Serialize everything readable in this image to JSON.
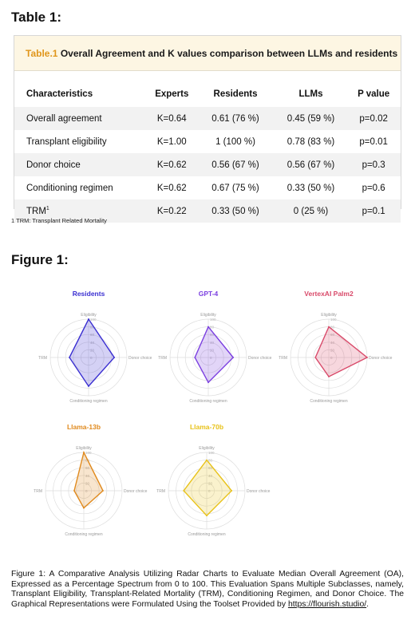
{
  "table_heading": "Table 1:",
  "table": {
    "caption_tag": "Table.1",
    "caption_text": "Overall Agreement and K values comparison between LLMs and residents",
    "headers": [
      "Characteristics",
      "Experts",
      "Residents",
      "LLMs",
      "P value"
    ],
    "rows": [
      [
        "Overall agreement",
        "K=0.64",
        "0.61 (76 %)",
        "0.45 (59 %)",
        "p=0.02"
      ],
      [
        "Transplant eligibility",
        "K=1.00",
        "1 (100 %)",
        "0.78 (83 %)",
        "p=0.01"
      ],
      [
        "Donor choice",
        "K=0.62",
        "0.56 (67 %)",
        "0.56 (67 %)",
        "p=0.3"
      ],
      [
        "Conditioning regimen",
        "K=0.62",
        "0.67 (75 %)",
        "0.33 (50 %)",
        "p=0.6"
      ],
      [
        "TRM",
        "K=0.22",
        "0.33 (50 %)",
        "0 (25 %)",
        "p=0.1"
      ]
    ],
    "trm_superscript": "1"
  },
  "footnote": "1 TRM: Transplant Related Mortality",
  "figure_heading": "Figure 1:",
  "figure_caption": "Figure 1: A Comparative Analysis Utilizing Radar Charts to Evaluate Median Overall Agreement (OA), Expressed as a Percentage Spectrum from 0 to 100. This Evaluation Spans Multiple Subclasses, namely, Transplant Eligibility, Transplant-Related Mortality (TRM), Conditioning Regimen, and Donor Choice. The Graphical Representations were Formulated Using the Toolset Provided by",
  "figure_link": "https://flourish.studio/",
  "figure_caption_end": ".",
  "chart_data": [
    {
      "type": "radar",
      "title": "Residents",
      "color": "#3a2fd1",
      "axes": [
        "Eligibility",
        "Donor choice",
        "Conditioning regimen",
        "TRM"
      ],
      "values": [
        100,
        67,
        75,
        50
      ],
      "range": [
        0,
        100
      ],
      "ticks": [
        "100",
        "80",
        "60",
        "40",
        "20",
        "0"
      ]
    },
    {
      "type": "radar",
      "title": "GPT-4",
      "color": "#7b3fe0",
      "axes": [
        "Eligibility",
        "Donor choice",
        "Conditioning regimen",
        "TRM"
      ],
      "values": [
        80,
        65,
        65,
        35
      ],
      "range": [
        0,
        100
      ],
      "ticks": [
        "100",
        "80",
        "60",
        "40",
        "20",
        "0"
      ]
    },
    {
      "type": "radar",
      "title": "VertexAI Palm2",
      "color": "#d94a6a",
      "axes": [
        "Eligibility",
        "Donor choice",
        "Conditioning regimen",
        "TRM"
      ],
      "values": [
        80,
        100,
        50,
        35
      ],
      "range": [
        0,
        100
      ],
      "ticks": [
        "100",
        "80",
        "60",
        "40",
        "20",
        "0"
      ]
    },
    {
      "type": "radar",
      "title": "Llama-13b",
      "color": "#e08a1e",
      "axes": [
        "Eligibility",
        "Donor choice",
        "Conditioning regimen",
        "TRM"
      ],
      "values": [
        100,
        50,
        45,
        25
      ],
      "range": [
        0,
        100
      ],
      "ticks": [
        "100",
        "80",
        "60",
        "40",
        "20",
        "0"
      ]
    },
    {
      "type": "radar",
      "title": "Llama-70b",
      "color": "#e8c21a",
      "axes": [
        "Eligibility",
        "Donor choice",
        "Conditioning regimen",
        "TRM"
      ],
      "values": [
        80,
        65,
        65,
        60
      ],
      "range": [
        0,
        100
      ],
      "ticks": [
        "100",
        "80",
        "60",
        "40",
        "20",
        "0"
      ]
    }
  ]
}
